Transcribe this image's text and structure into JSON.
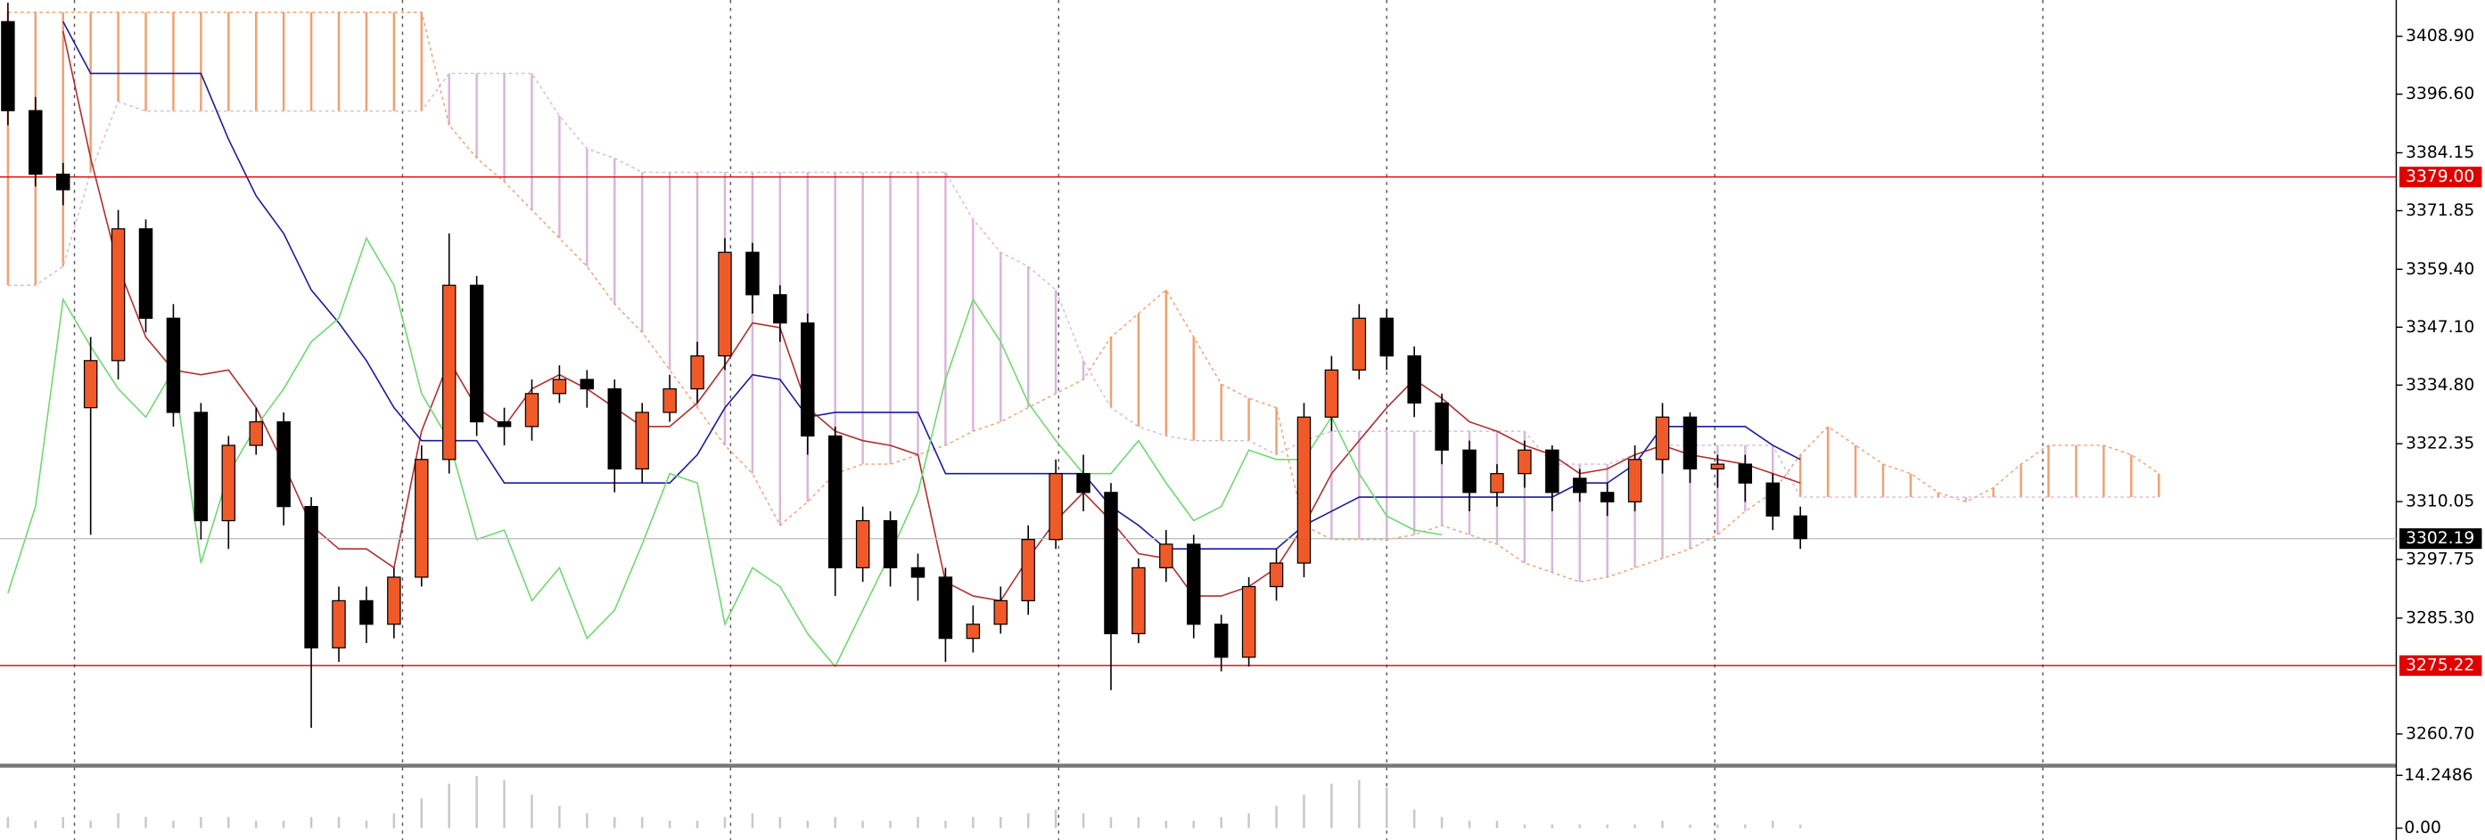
{
  "chart_data": {
    "type": "candlestick",
    "ylim": [
      3254.3,
      3416.6
    ],
    "yticks": [
      {
        "value": 3408.9,
        "label": "3408.90"
      },
      {
        "value": 3396.6,
        "label": "3396.60"
      },
      3384.15,
      3371.85,
      {
        "value": 3359.4,
        "label": "3359.40"
      },
      {
        "value": 3347.1,
        "label": "3347.10"
      },
      {
        "value": 3334.8,
        "label": "3334.80"
      },
      3322.35,
      3310.05,
      3297.75,
      {
        "value": 3285.3,
        "label": "3285.30"
      },
      {
        "value": 3260.7,
        "label": "3260.70"
      }
    ],
    "up_color": "#f05a28",
    "down_color": "#000000",
    "open": [
      3412,
      3393.1,
      3379.6,
      3330,
      3340,
      3368,
      3349,
      3329,
      3306,
      3322,
      3327,
      3309,
      3279,
      3289,
      3284,
      3294,
      3319,
      3356,
      3327,
      3326,
      3333,
      3336,
      3334,
      3317,
      3329,
      3334,
      3341,
      3363,
      3354,
      3348,
      3324,
      3296,
      3306,
      3296,
      3294,
      3281,
      3284,
      3289,
      3302,
      3316,
      3312,
      3282,
      3296,
      3301,
      3284,
      3277,
      3292,
      3297,
      3328,
      3338,
      3349,
      3341,
      3331,
      3321,
      3312,
      3316,
      3321,
      3315,
      3312,
      3310,
      3319,
      3328,
      3317,
      3318,
      3314,
      3307
    ],
    "high": [
      3416,
      3396,
      3382,
      3345,
      3372,
      3370,
      3352,
      3331,
      3324,
      3330,
      3329,
      3311,
      3292,
      3292,
      3296,
      3322,
      3367,
      3358,
      3330,
      3336,
      3339,
      3338,
      3336,
      3331,
      3337,
      3344,
      3366,
      3365,
      3356,
      3350,
      3326,
      3309,
      3308,
      3299,
      3296,
      3288,
      3292,
      3305,
      3319,
      3320,
      3314,
      3298,
      3304,
      3303,
      3286,
      3294,
      3300,
      3331,
      3341,
      3352,
      3351,
      3343,
      3333,
      3323,
      3318,
      3323,
      3322,
      3317,
      3314,
      3322,
      3331,
      3329,
      3320,
      3320,
      3316,
      3309
    ],
    "low": [
      3390,
      3377,
      3373,
      3303,
      3336,
      3346,
      3326,
      3302,
      3300,
      3320,
      3305,
      3262,
      3276,
      3280,
      3281,
      3292,
      3316,
      3324,
      3322,
      3323,
      3331,
      3330,
      3312,
      3314,
      3327,
      3331,
      3338,
      3350,
      3344,
      3320,
      3290,
      3293,
      3292,
      3289,
      3276,
      3278,
      3282,
      3286,
      3300,
      3308,
      3270,
      3280,
      3293,
      3281,
      3274,
      3275,
      3289,
      3294,
      3325,
      3336,
      3338,
      3328,
      3318,
      3308,
      3309,
      3313,
      3308,
      3310,
      3307,
      3308,
      3316,
      3314,
      3313,
      3310,
      3304,
      3300
    ],
    "close": [
      3393.1,
      3379.6,
      3376.3,
      3340,
      3368,
      3349,
      3329,
      3306,
      3322,
      3327,
      3309,
      3279,
      3289,
      3284,
      3294,
      3319,
      3356,
      3327,
      3326,
      3333,
      3336,
      3334,
      3317,
      3329,
      3334,
      3341,
      3363,
      3354,
      3348,
      3324,
      3296,
      3306,
      3296,
      3294,
      3281,
      3284,
      3289,
      3302,
      3316,
      3312,
      3282,
      3296,
      3301,
      3284,
      3277,
      3292,
      3297,
      3328,
      3338,
      3349,
      3341,
      3331,
      3321,
      3312,
      3316,
      3321,
      3312,
      3312,
      3310,
      3319,
      3328,
      3317,
      3318,
      3314,
      3307,
      3302.19
    ],
    "lines": [
      {
        "color": "#b03030",
        "values": [
          null,
          null,
          3410,
          3383,
          3360,
          3345,
          3338,
          3337,
          3338,
          3330,
          3318,
          3305,
          3300,
          3300,
          3296,
          3325,
          3340,
          3330,
          3326,
          3334,
          3337,
          3334,
          3330,
          3326,
          3326,
          3331,
          3339,
          3348,
          3347,
          3330,
          3325,
          3323,
          3322,
          3320,
          3293,
          3290,
          3289,
          3298,
          3306,
          3312,
          3306,
          3299,
          3298,
          3290,
          3290,
          3292,
          3296,
          3305,
          3316,
          3323,
          3330,
          3336,
          3332,
          3327,
          3325,
          3322,
          3320,
          3316,
          3317,
          3320,
          3322,
          3320,
          3319,
          3318,
          3316,
          3314
        ]
      },
      {
        "color": "#1a1aa0",
        "values": [
          null,
          null,
          3412,
          3401,
          3401,
          3401,
          3401,
          3401,
          3387,
          3375,
          3367,
          3355,
          3348,
          3340,
          3330,
          3323,
          3323,
          3323,
          3314,
          3314,
          3314,
          3314,
          3314,
          3314,
          3314,
          3320,
          3330,
          3337,
          3336,
          3328,
          3329,
          3329,
          3329,
          3329,
          3316,
          3316,
          3316,
          3316,
          3316,
          3316,
          3309,
          3305,
          3300,
          3300,
          3300,
          3300,
          3300,
          3305,
          3308,
          3311,
          3311,
          3311,
          3311,
          3311,
          3311,
          3311,
          3311,
          3314,
          3314,
          3318,
          3326,
          3326,
          3326,
          3326,
          3322,
          3319
        ]
      },
      {
        "color": "#6fd96f",
        "values": [
          3290.6,
          3309,
          3353,
          3343,
          3334,
          3328,
          3338,
          3297,
          3316,
          3326,
          3334,
          3344,
          3349,
          3366,
          3356,
          3333,
          3323,
          3302,
          3304,
          3289,
          3296,
          3281,
          3287,
          3301,
          3316,
          3314,
          3284,
          3296,
          3292,
          3282,
          3275,
          3287,
          3299,
          3312,
          3336,
          3353,
          3344,
          3331,
          3323,
          3316,
          3316,
          3323,
          3314,
          3306,
          3309,
          3321,
          3319,
          3319,
          3328,
          3316,
          3307,
          3304,
          3303,
          null,
          null,
          null,
          null,
          null,
          null,
          null,
          null,
          null,
          null,
          null,
          null,
          null
        ]
      }
    ],
    "cloud": {
      "up_color": "#f0a070",
      "down_color": "#d9b6d9",
      "span_a": [
        3414,
        3414,
        3414,
        3414,
        3414,
        3414,
        3414,
        3414,
        3414,
        3414,
        3414,
        3414,
        3414,
        3414,
        3414,
        3414,
        3390,
        3383,
        3378,
        3372,
        3366,
        3360,
        3352,
        3346,
        3338,
        3330,
        3322,
        3316,
        3305,
        3310,
        3316,
        3318,
        3318,
        3320,
        3322,
        3325,
        3327,
        3330,
        3333,
        3336,
        3345,
        3350,
        3355,
        3345,
        3335,
        3332,
        3330,
        3305,
        3302,
        3302,
        3302,
        3303,
        3305,
        3303,
        3301,
        3297,
        3295,
        3293,
        3294,
        3296,
        3298,
        3300,
        3303,
        3308,
        3312,
        3320,
        3326,
        3322,
        3318,
        3316,
        3312,
        3310,
        3313,
        3318,
        3322,
        3322,
        3322,
        3320,
        3316
      ],
      "span_b": [
        3356,
        3356,
        3360,
        3380,
        3395,
        3393,
        3393,
        3393,
        3393,
        3393,
        3393,
        3393,
        3393,
        3393,
        3393,
        3393,
        3401,
        3401,
        3401,
        3401,
        3392,
        3385,
        3383,
        3380,
        3380,
        3380,
        3380,
        3380,
        3380,
        3380,
        3380,
        3380,
        3380,
        3380,
        3380,
        3370,
        3363,
        3360,
        3355,
        3340,
        3330,
        3326,
        3324,
        3323,
        3323,
        3323,
        3320,
        3323,
        3325,
        3325,
        3325,
        3325,
        3325,
        3325,
        3325,
        3325,
        3318,
        3318,
        3318,
        3320,
        3322,
        3322,
        3322,
        3322,
        3322,
        3311,
        3311,
        3311,
        3311,
        3311,
        3311,
        3311,
        3311,
        3311,
        3311,
        3311,
        3311,
        3311,
        3311
      ]
    },
    "price_lines": [
      {
        "value": 3379,
        "label": "3379.00",
        "color": "#e00000"
      },
      {
        "value": 3275.22,
        "label": "3275.22",
        "color": "#e00000"
      },
      {
        "value": 3302.19,
        "label": "3302.19",
        "color": "#000000"
      }
    ],
    "indicator": {
      "type": "bar",
      "color": "#c8c8c8",
      "ylim": [
        -3.2,
        16
      ],
      "yticks": [
        14.2486,
        {
          "value": 0,
          "label": "0.00"
        }
      ],
      "values": [
        3,
        2,
        3,
        2,
        4,
        3,
        2,
        3,
        3,
        2,
        2,
        3,
        3,
        2,
        4,
        8,
        12,
        14,
        13,
        9,
        6,
        4,
        3,
        3,
        2,
        2,
        3,
        4,
        3,
        2,
        3,
        2,
        2,
        3,
        2,
        3,
        3,
        4,
        5,
        4,
        3,
        3,
        2,
        2,
        3,
        4,
        6,
        9,
        12,
        13,
        11,
        5,
        3,
        2,
        2,
        1,
        1,
        1,
        1,
        1,
        2,
        1,
        1,
        1,
        2,
        1
      ]
    }
  }
}
